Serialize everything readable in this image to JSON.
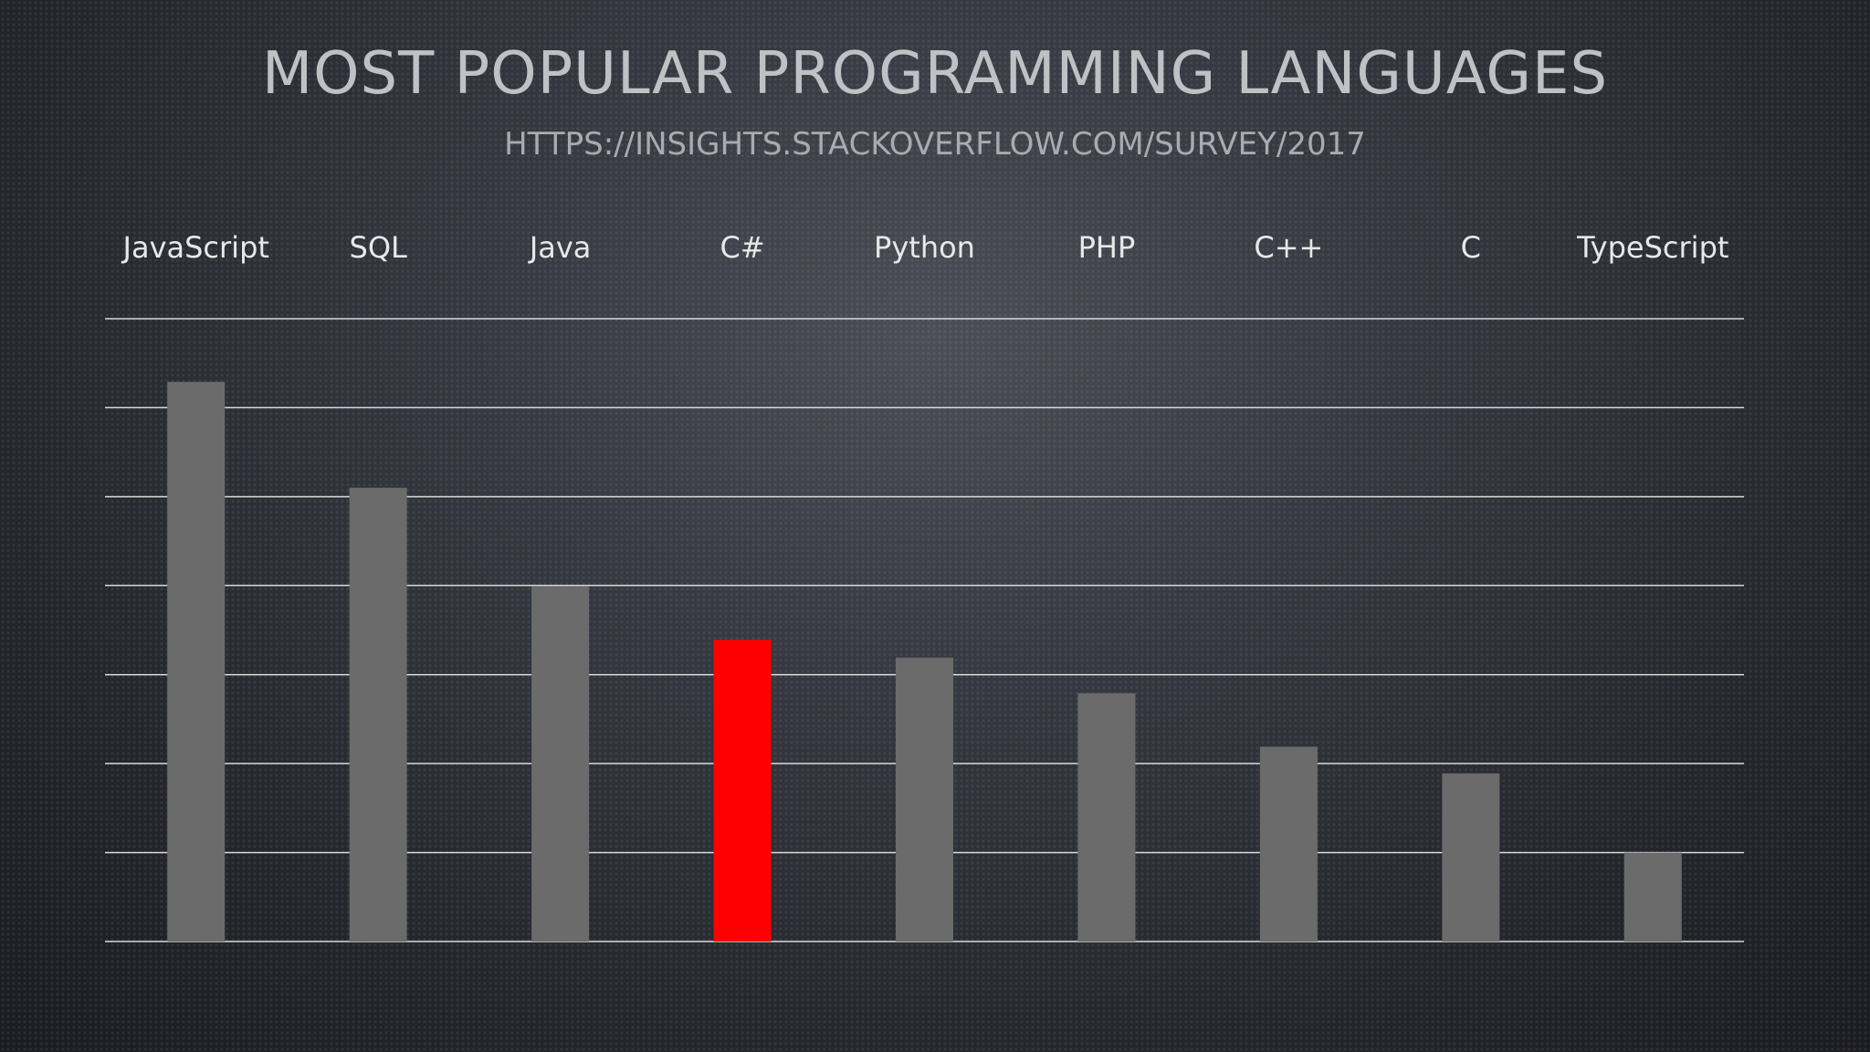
{
  "slide": {
    "title": "MOST POPULAR PROGRAMMING LANGUAGES",
    "subtitle": "HTTPS://INSIGHTS.STACKOVERFLOW.COM/SURVEY/2017"
  },
  "chart_data": {
    "type": "bar",
    "categories": [
      "JavaScript",
      "SQL",
      "Java",
      "C#",
      "Python",
      "PHP",
      "C++",
      "C",
      "TypeScript"
    ],
    "values": [
      62.9,
      51.0,
      39.9,
      33.9,
      31.9,
      27.9,
      21.9,
      18.9,
      10.0
    ],
    "ylim": [
      0,
      70
    ],
    "grid": true,
    "category_labels_position": "top",
    "bar_color": "#6b6b6b",
    "highlight_category": "C#",
    "highlight_color": "#ff0000",
    "gridline_color": "#d9d9d9"
  }
}
